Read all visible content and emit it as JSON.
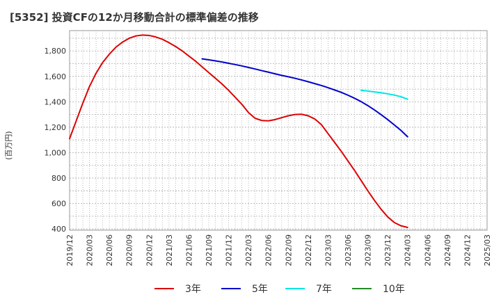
{
  "chart_data": {
    "type": "line",
    "title": "[5352]  投資CFの12か月移動合計の標準偏差の推移",
    "ylabel": "(百万円)",
    "xlabel": "",
    "ylim": [
      390,
      1960
    ],
    "y_ticks": [
      400,
      600,
      800,
      1000,
      1200,
      1400,
      1600,
      1800
    ],
    "y_tick_labels": [
      "400",
      "600",
      "800",
      "1,000",
      "1,200",
      "1,400",
      "1,600",
      "1,800"
    ],
    "x_ticks": [
      "2019/12",
      "2020/03",
      "2020/06",
      "2020/09",
      "2020/12",
      "2021/03",
      "2021/06",
      "2021/09",
      "2021/12",
      "2022/03",
      "2022/06",
      "2022/09",
      "2022/12",
      "2023/03",
      "2023/06",
      "2023/09",
      "2023/12",
      "2024/03",
      "2024/06",
      "2024/09",
      "2024/12",
      "2025/03"
    ],
    "grid": true,
    "legend_position": "bottom",
    "series": [
      {
        "name": "3年",
        "color": "#dd0000",
        "points": [
          [
            "2019/12",
            1110
          ],
          [
            "2020/01",
            1250
          ],
          [
            "2020/02",
            1390
          ],
          [
            "2020/03",
            1520
          ],
          [
            "2020/04",
            1625
          ],
          [
            "2020/05",
            1710
          ],
          [
            "2020/06",
            1775
          ],
          [
            "2020/07",
            1830
          ],
          [
            "2020/08",
            1870
          ],
          [
            "2020/09",
            1900
          ],
          [
            "2020/10",
            1918
          ],
          [
            "2020/11",
            1925
          ],
          [
            "2020/12",
            1922
          ],
          [
            "2020/01b",
            1910
          ],
          [
            "2021/02",
            1892
          ],
          [
            "2021/03",
            1865
          ],
          [
            "2021/04",
            1835
          ],
          [
            "2021/05",
            1800
          ],
          [
            "2021/06",
            1760
          ],
          [
            "2021/07",
            1720
          ],
          [
            "2021/08",
            1675
          ],
          [
            "2021/09",
            1630
          ],
          [
            "2021/10",
            1585
          ],
          [
            "2021/11",
            1540
          ],
          [
            "2021/12",
            1490
          ],
          [
            "2022/01",
            1435
          ],
          [
            "2022/02",
            1380
          ],
          [
            "2022/03",
            1315
          ],
          [
            "2022/04",
            1270
          ],
          [
            "2022/05",
            1253
          ],
          [
            "2022/06",
            1250
          ],
          [
            "2022/07",
            1260
          ],
          [
            "2022/08",
            1275
          ],
          [
            "2022/09",
            1290
          ],
          [
            "2022/10",
            1300
          ],
          [
            "2022/11",
            1302
          ],
          [
            "2022/12",
            1290
          ],
          [
            "2023/01",
            1265
          ],
          [
            "2023/02",
            1220
          ],
          [
            "2023/03",
            1150
          ],
          [
            "2023/04",
            1080
          ],
          [
            "2023/05",
            1010
          ],
          [
            "2023/06",
            935
          ],
          [
            "2023/07",
            860
          ],
          [
            "2023/08",
            780
          ],
          [
            "2023/09",
            700
          ],
          [
            "2023/10",
            625
          ],
          [
            "2023/11",
            555
          ],
          [
            "2023/12",
            495
          ],
          [
            "2024/01",
            450
          ],
          [
            "2024/02",
            425
          ],
          [
            "2024/03",
            412
          ]
        ]
      },
      {
        "name": "5年",
        "color": "#0000cc",
        "points": [
          [
            "2021/08",
            1738
          ],
          [
            "2021/09",
            1730
          ],
          [
            "2021/10",
            1722
          ],
          [
            "2021/11",
            1713
          ],
          [
            "2021/12",
            1703
          ],
          [
            "2022/01",
            1693
          ],
          [
            "2022/02",
            1682
          ],
          [
            "2022/03",
            1670
          ],
          [
            "2022/04",
            1658
          ],
          [
            "2022/05",
            1645
          ],
          [
            "2022/06",
            1633
          ],
          [
            "2022/07",
            1620
          ],
          [
            "2022/08",
            1608
          ],
          [
            "2022/09",
            1597
          ],
          [
            "2022/10",
            1585
          ],
          [
            "2022/11",
            1572
          ],
          [
            "2022/12",
            1558
          ],
          [
            "2023/01",
            1543
          ],
          [
            "2023/02",
            1528
          ],
          [
            "2023/03",
            1511
          ],
          [
            "2023/04",
            1493
          ],
          [
            "2023/05",
            1474
          ],
          [
            "2023/06",
            1452
          ],
          [
            "2023/07",
            1428
          ],
          [
            "2023/08",
            1401
          ],
          [
            "2023/09",
            1370
          ],
          [
            "2023/10",
            1336
          ],
          [
            "2023/11",
            1299
          ],
          [
            "2023/12",
            1260
          ],
          [
            "2024/01",
            1218
          ],
          [
            "2024/02",
            1175
          ],
          [
            "2024/03",
            1125
          ]
        ]
      },
      {
        "name": "7年",
        "color": "#00e5e5",
        "points": [
          [
            "2023/08",
            1490
          ],
          [
            "2023/09",
            1485
          ],
          [
            "2023/10",
            1478
          ],
          [
            "2023/11",
            1471
          ],
          [
            "2023/12",
            1463
          ],
          [
            "2024/01",
            1453
          ],
          [
            "2024/02",
            1440
          ],
          [
            "2024/03",
            1420
          ]
        ]
      },
      {
        "name": "10年",
        "color": "#228b22",
        "points": []
      }
    ]
  }
}
